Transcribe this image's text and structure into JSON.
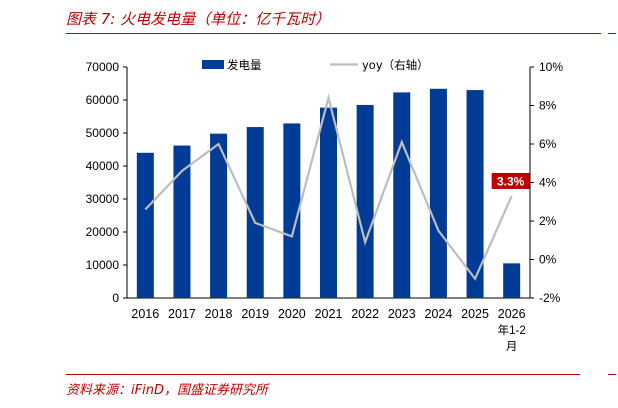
{
  "header": {
    "title": "图表 7:  火电发电量（单位：亿千瓦时）"
  },
  "footer": {
    "source": "资料来源：iFinD，国盛证券研究所"
  },
  "colors": {
    "bar": "#003b96",
    "line": "#bdbdbd",
    "accent": "#c00000"
  },
  "chart_data": {
    "type": "bar",
    "categories": [
      "2016",
      "2017",
      "2018",
      "2019",
      "2020",
      "2021",
      "2022",
      "2023",
      "2024",
      "2025",
      "2026年1-2月"
    ],
    "category_labels": [
      [
        "2016"
      ],
      [
        "2017"
      ],
      [
        "2018"
      ],
      [
        "2019"
      ],
      [
        "2020"
      ],
      [
        "2021"
      ],
      [
        "2022"
      ],
      [
        "2023"
      ],
      [
        "2024"
      ],
      [
        "2025"
      ],
      [
        "2026",
        "年1-2",
        "月"
      ]
    ],
    "series": [
      {
        "name": "发电量",
        "type": "bar",
        "axis": "left",
        "values": [
          44000,
          46200,
          49800,
          51800,
          52900,
          57700,
          58500,
          62300,
          63400,
          63000,
          10500
        ]
      },
      {
        "name": "yoy（右轴）",
        "type": "line",
        "axis": "right",
        "unit": "%",
        "values": [
          2.6,
          4.6,
          6.0,
          1.9,
          1.2,
          8.4,
          0.9,
          6.1,
          1.5,
          -1.0,
          3.3
        ]
      }
    ],
    "ylim": [
      0,
      70000
    ],
    "yticks": [
      "0",
      "10000",
      "20000",
      "30000",
      "40000",
      "50000",
      "60000",
      "70000"
    ],
    "y2lim": [
      -2,
      10
    ],
    "y2ticks": [
      "-2%",
      "0%",
      "2%",
      "4%",
      "6%",
      "8%",
      "10%"
    ],
    "annotation": {
      "text": "3.3%",
      "category": "2026年1-2月",
      "series": "yoy（右轴）"
    },
    "legend": "top-center",
    "grid": false
  }
}
